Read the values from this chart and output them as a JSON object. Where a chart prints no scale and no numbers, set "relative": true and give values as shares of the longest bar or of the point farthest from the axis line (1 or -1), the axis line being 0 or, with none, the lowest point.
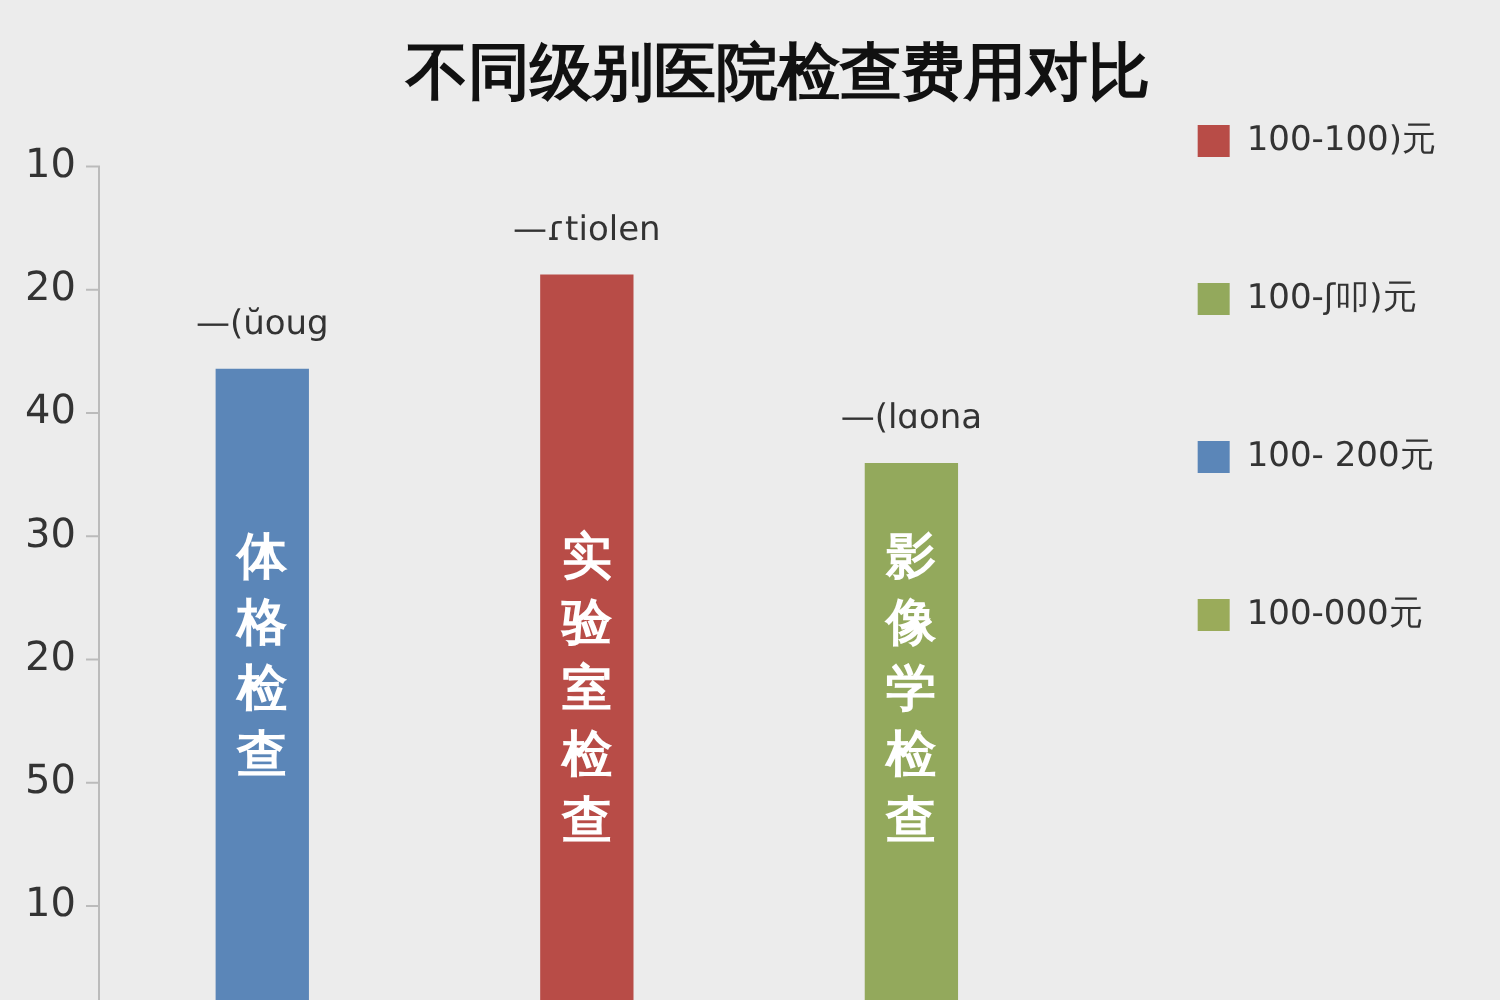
{
  "chart_data": {
    "type": "bar",
    "title": "不同级别医院检查费用对比",
    "categories": [
      "体格检查",
      "实验室检查",
      "影像学检查"
    ],
    "series": [
      {
        "name": "100-100)元",
        "color": "#b84c47",
        "values": [
          null,
          1,
          null
        ]
      },
      {
        "name": "100-ʃ叩)元",
        "color": "#93a95c",
        "values": [
          null,
          null,
          0.74
        ]
      },
      {
        "name": "100- 200元",
        "color": "#5b86b8",
        "values": [
          0.87,
          null,
          null
        ]
      },
      {
        "name": "100-000元",
        "color": "#9aab5a",
        "values": [
          null,
          null,
          null
        ]
      }
    ],
    "relative": true,
    "annotations": [
      "10",
      "20",
      "40",
      "30",
      "20",
      "50",
      "10",
      {
        "text": "—(ŭoug",
        "x": "体格检查",
        "y": 0.87
      },
      {
        "text": "—ɾtiolen",
        "x": "实验室检查",
        "y": 1
      },
      {
        "text": "—(lɑona",
        "x": "影像学检查",
        "y": 0.74
      }
    ],
    "legend": "right",
    "grid": false
  }
}
